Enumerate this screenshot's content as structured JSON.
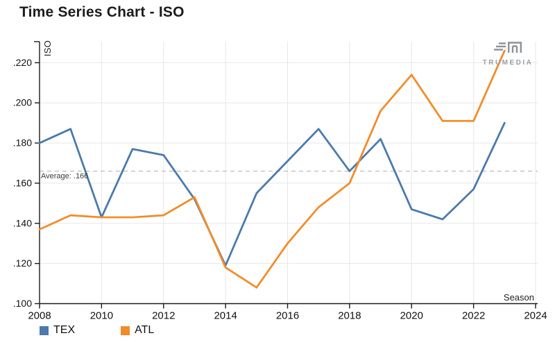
{
  "page": {
    "title": "Time Series Chart - ISO",
    "background": "#ffffff"
  },
  "logo": {
    "name": "TruMedia",
    "text": "TRUMEDIA",
    "color": "#8c9196"
  },
  "chart_data": {
    "type": "line",
    "title": "Time Series Chart - ISO",
    "xlabel": "Season",
    "ylabel": "ISO",
    "x": [
      2008,
      2009,
      2010,
      2011,
      2012,
      2013,
      2014,
      2015,
      2016,
      2017,
      2018,
      2019,
      2020,
      2021,
      2022,
      2023
    ],
    "series": [
      {
        "name": "TEX",
        "color": "#4b7aab",
        "values": [
          0.18,
          0.187,
          0.143,
          0.177,
          0.174,
          0.152,
          0.119,
          0.155,
          0.171,
          0.187,
          0.166,
          0.182,
          0.147,
          0.142,
          0.157,
          0.19
        ]
      },
      {
        "name": "ATL",
        "color": "#f28c2b",
        "values": [
          0.137,
          0.144,
          0.143,
          0.143,
          0.144,
          0.153,
          0.118,
          0.108,
          0.13,
          0.148,
          0.16,
          0.196,
          0.214,
          0.191,
          0.191,
          0.226
        ]
      }
    ],
    "xlim": [
      2008,
      2024
    ],
    "ylim": [
      0.1,
      0.2305
    ],
    "xticks": [
      "2008",
      "2010",
      "2012",
      "2014",
      "2016",
      "2018",
      "2020",
      "2022",
      "2024"
    ],
    "xtick_values": [
      2008,
      2010,
      2012,
      2014,
      2016,
      2018,
      2020,
      2022,
      2024
    ],
    "yticks": [
      ".100",
      ".120",
      ".140",
      ".160",
      ".180",
      ".200",
      ".220"
    ],
    "ytick_values": [
      0.1,
      0.12,
      0.14,
      0.16,
      0.18,
      0.2,
      0.22
    ],
    "grid": true,
    "legend_position": "bottom-left",
    "average": {
      "label": "Average: .166",
      "value": 0.166,
      "line_color": "#b5b5b5"
    },
    "grid_color": "#e7e7e9",
    "axis_color": "#1a1a1a"
  }
}
